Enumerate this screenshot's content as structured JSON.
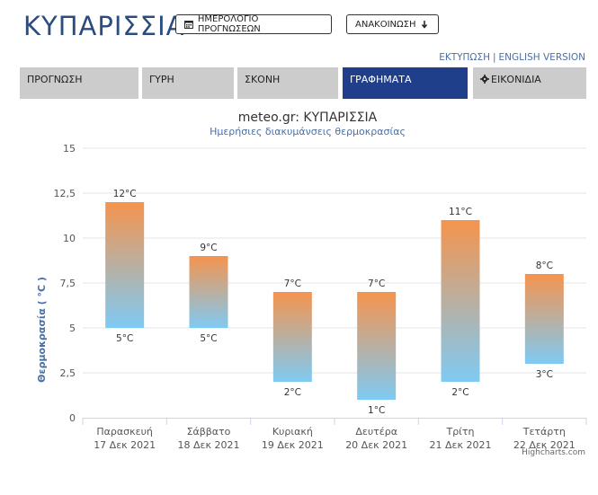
{
  "header": {
    "title": "ΚΥΠΑΡΙΣΣΙΑ",
    "calendar_button": "ΗΜΕΡΟΛΟΓΙΟ ΠΡΟΓΝΩΣΕΩΝ",
    "announcement_button": "ΑΝΑΚΟΙΝΩΣΗ",
    "print_link": "ΕΚΤΥΠΩΣΗ",
    "separator": "|",
    "english_link": "ENGLISH VERSION"
  },
  "tabs": [
    {
      "label": "ΠΡΟΓΝΩΣΗ",
      "active": false
    },
    {
      "label": "ΓΥΡΗ",
      "active": false
    },
    {
      "label": "ΣΚΟΝΗ",
      "active": false
    },
    {
      "label": "ΓΡΑΦΗΜΑΤΑ",
      "active": true
    },
    {
      "label": "ΕΙΚΟΝΙΔΙΑ",
      "active": false,
      "icon": "gear-icon"
    }
  ],
  "chart_data": {
    "type": "bar",
    "title": "meteo.gr: ΚΥΠΑΡΙΣΣΙΑ",
    "subtitle": "Ημερήσιες διακυμάνσεις θερμοκρασίας",
    "ylabel": "Θερμοκρασία ( °C )",
    "xlabel": "",
    "ylim": [
      0,
      15
    ],
    "yticks": [
      0,
      2.5,
      5,
      7.5,
      10,
      12.5,
      15
    ],
    "ytick_labels": [
      "0",
      "2,5",
      "5",
      "7,5",
      "10",
      "12,5",
      "15"
    ],
    "categories": [
      [
        "Παρασκευή",
        "17 Δεκ 2021"
      ],
      [
        "Σάββατο",
        "18 Δεκ 2021"
      ],
      [
        "Κυριακή",
        "19 Δεκ 2021"
      ],
      [
        "Δευτέρα",
        "20 Δεκ 2021"
      ],
      [
        "Τρίτη",
        "21 Δεκ 2021"
      ],
      [
        "Τετάρτη",
        "22 Δεκ 2021"
      ]
    ],
    "min_values": [
      5,
      5,
      2,
      1,
      2,
      3
    ],
    "max_values": [
      12,
      9,
      7,
      7,
      11,
      8
    ],
    "unit": "°C",
    "grid": true,
    "colors": {
      "top": "#f5944e",
      "bottom": "#7fcaf3"
    },
    "credits": "Highcharts.com"
  }
}
